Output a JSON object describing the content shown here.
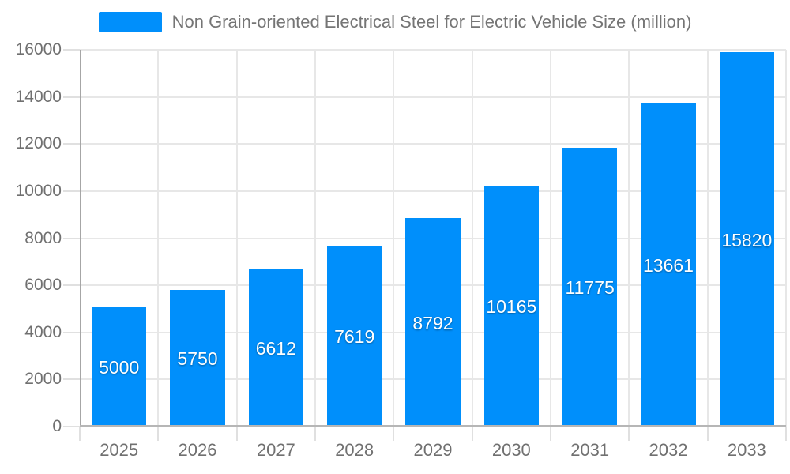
{
  "chart_data": {
    "type": "bar",
    "title": "Non Grain-oriented Electrical Steel for Electric Vehicle Size (million)",
    "legend_position": "top",
    "categories": [
      "2025",
      "2026",
      "2027",
      "2028",
      "2029",
      "2030",
      "2031",
      "2032",
      "2033"
    ],
    "values": [
      5000,
      5750,
      6612,
      7619,
      8792,
      10165,
      11775,
      13661,
      15820
    ],
    "xlabel": "",
    "ylabel": "",
    "ylim": [
      0,
      16000
    ],
    "y_ticks": [
      0,
      2000,
      4000,
      6000,
      8000,
      10000,
      12000,
      14000,
      16000
    ],
    "grid": "both",
    "bar_color": "#008FFB",
    "data_label_color": "#FFFFFF",
    "axis_label_color": "#707070",
    "grid_color": "#e7e7e7"
  }
}
